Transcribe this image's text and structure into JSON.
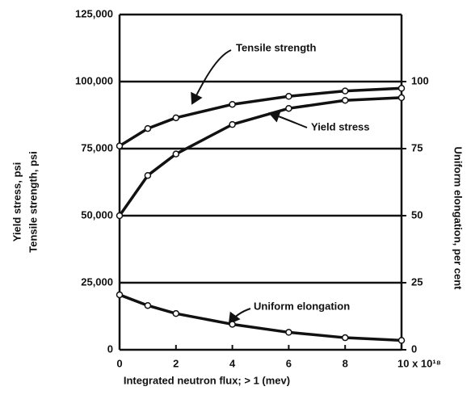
{
  "chart_data": {
    "type": "line",
    "x_label": "Integrated neutron flux; > 1 (mev)",
    "y_label": [
      "Yield stress, psi",
      "Tensile strength, psi"
    ],
    "y2_label": "Uniform elongation, per cent",
    "x": [
      0,
      1,
      2,
      4,
      6,
      8,
      10
    ],
    "series": [
      {
        "name": "Tensile strength",
        "color": "#111111",
        "values": [
          76000,
          82500,
          86500,
          91500,
          94500,
          96500,
          97500
        ]
      },
      {
        "name": "Yield stress",
        "color": "#111111",
        "values": [
          50000,
          65000,
          73000,
          84000,
          90000,
          93000,
          94000
        ]
      },
      {
        "name": "Uniform elongation",
        "color": "#111111",
        "axis": "y2",
        "values": [
          20.5,
          16.5,
          13.5,
          9.5,
          6.5,
          4.5,
          3.5
        ]
      }
    ],
    "xlim": [
      0,
      10
    ],
    "xticks": [
      0,
      2,
      4,
      6,
      8,
      {
        "value": 10,
        "label": "10 x 10¹⁸"
      }
    ],
    "ylim": [
      0,
      125000
    ],
    "yticks": [
      0,
      {
        "value": 25000,
        "label": "25,000"
      },
      {
        "value": 50000,
        "label": "50,000"
      },
      {
        "value": 75000,
        "label": "75,000"
      },
      {
        "value": 100000,
        "label": "100,000"
      },
      {
        "value": 125000,
        "label": "125,000"
      }
    ],
    "y2lim": [
      0,
      125
    ],
    "y2ticks": [
      0,
      25,
      50,
      75,
      100
    ],
    "grid": true
  }
}
